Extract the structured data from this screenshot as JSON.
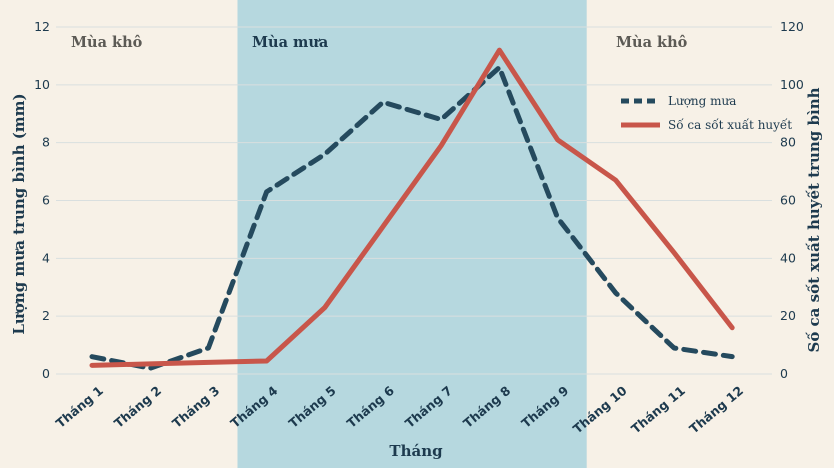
{
  "chart_data": {
    "type": "line",
    "categories": [
      "Tháng 1",
      "Tháng 2",
      "Tháng 3",
      "Tháng 4",
      "Tháng 5",
      "Tháng 6",
      "Tháng 7",
      "Tháng 8",
      "Tháng 9",
      "Tháng 10",
      "Tháng 11",
      "Tháng 12"
    ],
    "xlabel": "Tháng",
    "ylabel_left": "Lượng mưa trung bình (mm)",
    "ylabel_right": "Số ca sốt xuất huyết  trung bình",
    "ylim_left": [
      0,
      12
    ],
    "ylim_right": [
      0,
      120
    ],
    "yticks_left": [
      "0",
      "2",
      "4",
      "6",
      "8",
      "10",
      "12"
    ],
    "yticks_right": [
      "0",
      "20",
      "40",
      "60",
      "80",
      "100",
      "120"
    ],
    "grid": true,
    "legend_position": "right",
    "series": [
      {
        "name": "Lượng mưa",
        "axis": "left",
        "style": "dashed",
        "color": "#254a5e",
        "values": [
          0.6,
          0.2,
          0.9,
          6.3,
          7.6,
          9.4,
          8.8,
          10.6,
          5.4,
          2.8,
          0.9,
          0.6
        ]
      },
      {
        "name": "Số ca sốt xuất huyết",
        "axis": "right",
        "style": "solid",
        "color": "#c8564a",
        "values": [
          3,
          3.5,
          4,
          4.5,
          23,
          51,
          79,
          112,
          81,
          67,
          42,
          16
        ]
      }
    ],
    "seasons": [
      {
        "label": "Mùa khô",
        "from": 1,
        "to": 3.5,
        "shaded": false
      },
      {
        "label": "Mùa mưa",
        "from": 3.5,
        "to": 9.5,
        "shaded": true
      },
      {
        "label": "Mùa khô",
        "from": 9.5,
        "to": 12,
        "shaded": false
      }
    ],
    "colors": {
      "background": "#f7f1e7",
      "rain_band": "#b6d8df",
      "grid": "#d9dfdf",
      "text": "#1d3a4e",
      "season_dry": "#5c5a55",
      "season_wet": "#1d3a4e"
    }
  }
}
